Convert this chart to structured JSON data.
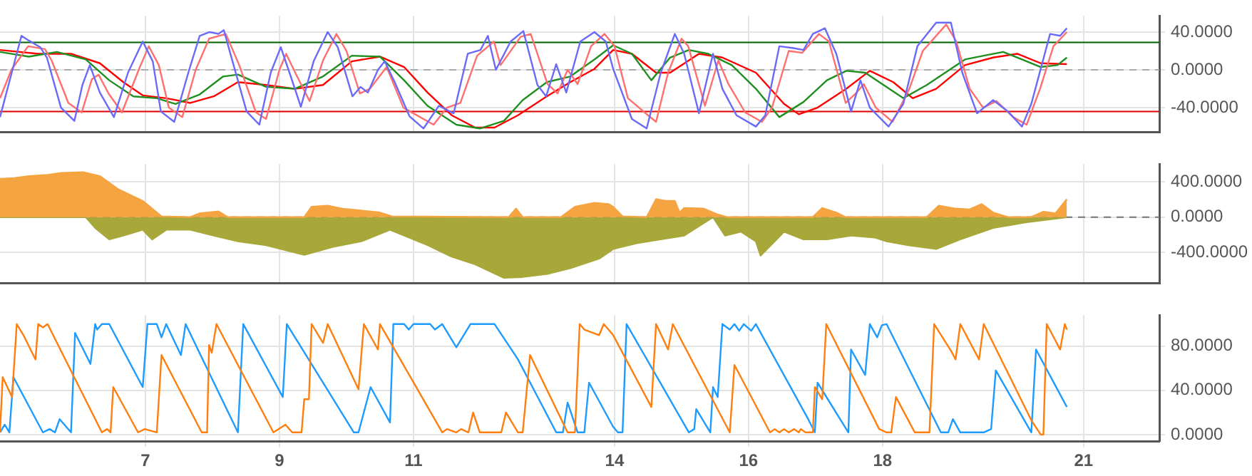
{
  "chart_data": [
    {
      "type": "line",
      "xlim": [
        4.83,
        22.13
      ],
      "xticks": [
        7,
        9,
        11,
        14,
        16,
        18,
        21
      ],
      "ylim": [
        -66,
        57
      ],
      "yticks": [
        {
          "value": 40,
          "label": "40.0000"
        },
        {
          "value": 0,
          "label": "0.0000"
        },
        {
          "value": -40,
          "label": "-40.0000"
        }
      ],
      "grid": true,
      "tick_labels": "y",
      "marker": "none",
      "ref_lines": [
        {
          "axis": "y",
          "value": 29,
          "color": "#006400"
        },
        {
          "axis": "y",
          "value": -44,
          "color": "#dd0000"
        },
        {
          "axis": "y",
          "value": 0,
          "color": "#aaaaaa",
          "line_style": "dashed"
        }
      ],
      "series": [
        {
          "color": "#6a6af8",
          "x": [
            4.83,
            5.15,
            5.26,
            5.43,
            5.53,
            5.74,
            5.94,
            6.06,
            6.17,
            6.32,
            6.53,
            6.74,
            6.96,
            7.11,
            7.23,
            7.43,
            7.64,
            7.81,
            7.96,
            8.09,
            8.17,
            8.3,
            8.51,
            8.7,
            8.87,
            9.02,
            9.15,
            9.32,
            9.51,
            9.72,
            9.87,
            10.09,
            10.21,
            10.32,
            10.47,
            10.57,
            10.72,
            10.94,
            11.15,
            11.38,
            11.6,
            11.81,
            12.0,
            12.11,
            12.23,
            12.45,
            12.64,
            12.85,
            12.98,
            13.13,
            13.28,
            13.49,
            13.7,
            13.87,
            13.98,
            14.26,
            14.48,
            14.69,
            14.9,
            15.04,
            15.26,
            15.47,
            15.61,
            15.82,
            16.11,
            16.25,
            16.46,
            16.67,
            16.82,
            16.96,
            17.14,
            17.31,
            17.53,
            17.67,
            17.81,
            18.09,
            18.31,
            18.52,
            18.8,
            19.02,
            19.19,
            19.41,
            19.65,
            19.87,
            20.08,
            20.22,
            20.5,
            20.65,
            20.75
          ],
          "values": [
            -50,
            36,
            31,
            24,
            13,
            -40,
            -54,
            -16,
            5,
            -24,
            -50,
            -3,
            30,
            9,
            -44,
            -55,
            -3,
            36,
            40,
            38,
            42,
            9,
            -44,
            -58,
            -3,
            24,
            -3,
            -39,
            9,
            40,
            24,
            -28,
            -18,
            -24,
            0,
            9,
            -13,
            -49,
            -62,
            -38,
            -46,
            17,
            21,
            36,
            0,
            30,
            41,
            -16,
            -28,
            6,
            -24,
            30,
            40,
            30,
            1,
            -52,
            -62,
            -3,
            38,
            17,
            -46,
            17,
            -20,
            -48,
            -60,
            -48,
            25,
            23,
            21,
            38,
            44,
            17,
            -44,
            -11,
            -40,
            -60,
            -36,
            25,
            50,
            50,
            -3,
            -46,
            -32,
            -44,
            -60,
            -36,
            38,
            36,
            44
          ]
        },
        {
          "color": "#ff6f6f",
          "x": [
            4.83,
            5.0,
            5.25,
            5.5,
            5.6,
            5.85,
            6.05,
            6.2,
            6.3,
            6.45,
            6.65,
            6.9,
            7.05,
            7.2,
            7.35,
            7.55,
            7.75,
            7.95,
            8.2,
            8.4,
            8.65,
            8.8,
            9.0,
            9.1,
            9.25,
            9.45,
            9.65,
            9.85,
            10.0,
            10.2,
            10.35,
            10.6,
            10.85,
            11.3,
            11.5,
            11.7,
            11.95,
            12.2,
            12.3,
            12.6,
            12.75,
            13.0,
            13.15,
            13.3,
            13.45,
            13.65,
            13.85,
            14.0,
            14.2,
            14.5,
            14.62,
            14.8,
            15.0,
            15.1,
            15.35,
            15.55,
            15.7,
            15.95,
            16.2,
            16.35,
            16.6,
            16.8,
            17.05,
            17.2,
            17.45,
            17.6,
            17.72,
            17.9,
            18.15,
            18.4,
            18.6,
            18.95,
            19.1,
            19.3,
            19.5,
            19.7,
            19.95,
            20.15,
            20.35,
            20.55,
            20.75
          ],
          "values": [
            -30,
            0,
            25,
            22,
            10,
            -35,
            -45,
            -10,
            -5,
            -25,
            -45,
            0,
            25,
            5,
            -40,
            -50,
            0,
            33,
            38,
            5,
            -45,
            -52,
            0,
            17,
            -5,
            -33,
            10,
            38,
            20,
            -25,
            -20,
            3,
            -40,
            -58,
            -40,
            -35,
            15,
            30,
            5,
            35,
            38,
            -15,
            -25,
            0,
            -15,
            25,
            38,
            25,
            -30,
            -48,
            -55,
            -3,
            33,
            25,
            -38,
            10,
            -15,
            -45,
            -55,
            -40,
            20,
            18,
            38,
            30,
            -35,
            -25,
            -15,
            -40,
            -55,
            -20,
            20,
            48,
            30,
            -20,
            -40,
            -33,
            -50,
            -58,
            -20,
            25,
            40
          ]
        },
        {
          "color": "#1f8f1f",
          "x": [
            4.83,
            5.26,
            5.68,
            6.11,
            6.46,
            6.82,
            7.17,
            7.45,
            7.81,
            8.16,
            8.38,
            8.8,
            9.23,
            9.65,
            10.08,
            10.5,
            10.86,
            11.21,
            11.64,
            11.99,
            12.35,
            12.63,
            12.99,
            13.34,
            13.7,
            13.98,
            14.26,
            14.55,
            14.83,
            15.11,
            15.4,
            15.75,
            16.11,
            16.46,
            16.82,
            17.17,
            17.46,
            17.74,
            18.31,
            18.66,
            19.23,
            19.51,
            19.8,
            20.08,
            20.36,
            20.61,
            20.75
          ],
          "values": [
            19,
            14,
            19,
            11,
            -11,
            -28,
            -30,
            -36,
            -26,
            -7,
            -5,
            -18,
            -20,
            -7,
            15,
            14,
            -11,
            -38,
            -58,
            -62,
            -54,
            -32,
            -13,
            -7,
            11,
            26,
            17,
            -11,
            13,
            21,
            17,
            5,
            -20,
            -50,
            -34,
            -11,
            -1,
            -3,
            -30,
            -16,
            11,
            15,
            19,
            11,
            3,
            5,
            13
          ]
        },
        {
          "color": "#ff0000",
          "x": [
            4.83,
            5.4,
            5.89,
            6.32,
            6.67,
            6.96,
            7.31,
            7.67,
            8.02,
            8.38,
            8.8,
            9.23,
            9.65,
            10.08,
            10.5,
            10.86,
            11.21,
            11.57,
            11.92,
            12.21,
            12.56,
            12.99,
            13.34,
            13.7,
            13.98,
            14.26,
            14.62,
            14.83,
            15.26,
            15.61,
            16.11,
            16.53,
            16.75,
            17.03,
            17.46,
            17.81,
            18.16,
            18.45,
            18.8,
            19.23,
            19.65,
            20.01,
            20.36,
            20.75
          ],
          "values": [
            21,
            17,
            17,
            7,
            -13,
            -27,
            -30,
            -35,
            -28,
            -13,
            -16,
            -20,
            -16,
            9,
            14,
            3,
            -24,
            -48,
            -61,
            -61,
            -48,
            -28,
            -13,
            1,
            21,
            17,
            -3,
            -3,
            17,
            13,
            -3,
            -36,
            -47,
            -40,
            -20,
            -1,
            -13,
            -30,
            -20,
            5,
            13,
            17,
            7,
            6
          ]
        }
      ]
    },
    {
      "type": "area",
      "xlim": [
        4.83,
        22.13
      ],
      "xticks": [
        7,
        9,
        11,
        14,
        16,
        18,
        21
      ],
      "ylim": [
        -750,
        600
      ],
      "yticks": [
        {
          "value": 400,
          "label": "400.0000"
        },
        {
          "value": 0,
          "label": "0.0000"
        },
        {
          "value": -400,
          "label": "-400.0000"
        }
      ],
      "grid": true,
      "tick_labels": "y",
      "marker": "none",
      "ref_lines": [
        {
          "axis": "y",
          "value": 0,
          "color": "#777777",
          "line_style": "dashed"
        }
      ],
      "series": [
        {
          "color": "#f5a442",
          "x": [
            4.83,
            5.04,
            5.26,
            5.54,
            5.75,
            6.07,
            6.32,
            6.6,
            6.96,
            7.24,
            7.67,
            7.81,
            8.09,
            8.23,
            9.37,
            9.48,
            9.72,
            9.94,
            10.22,
            10.5,
            10.68,
            12.42,
            12.53,
            12.63,
            13.2,
            13.41,
            13.7,
            13.91,
            13.98,
            14.12,
            14.48,
            14.62,
            14.76,
            14.9,
            14.97,
            15.04,
            15.33,
            15.54,
            15.68,
            16.96,
            17.1,
            17.31,
            17.45,
            18.66,
            18.84,
            19.09,
            19.3,
            19.48,
            19.65,
            19.87,
            20.22,
            20.4,
            20.58,
            20.75
          ],
          "values": [
            435,
            443,
            465,
            478,
            500,
            509,
            465,
            313,
            183,
            9,
            0,
            43,
            65,
            0,
            0,
            117,
            130,
            96,
            74,
            52,
            9,
            0,
            96,
            0,
            0,
            117,
            161,
            148,
            117,
            9,
            0,
            204,
            183,
            183,
            52,
            104,
            96,
            30,
            0,
            0,
            104,
            52,
            0,
            0,
            130,
            96,
            87,
            148,
            52,
            0,
            0,
            61,
            43,
            204
          ]
        },
        {
          "color": "#a8a83a",
          "x": [
            4.83,
            6.11,
            6.25,
            6.46,
            6.67,
            6.96,
            7.1,
            7.31,
            7.67,
            8.02,
            8.38,
            8.8,
            9.37,
            9.79,
            10.22,
            10.65,
            10.93,
            11.21,
            11.57,
            11.92,
            12.35,
            12.63,
            12.99,
            13.34,
            13.77,
            13.98,
            14.33,
            14.69,
            15.04,
            15.47,
            15.65,
            15.89,
            16.11,
            16.18,
            16.39,
            16.53,
            16.82,
            17.17,
            17.53,
            17.88,
            18.06,
            18.38,
            18.8,
            19.16,
            19.65,
            20.15,
            20.75
          ],
          "values": [
            0,
            0,
            -122,
            -252,
            -209,
            -143,
            -252,
            -143,
            -143,
            -209,
            -274,
            -317,
            -426,
            -339,
            -274,
            -143,
            -230,
            -317,
            -448,
            -535,
            -687,
            -678,
            -644,
            -578,
            -470,
            -361,
            -296,
            -252,
            -209,
            0,
            -209,
            -165,
            -274,
            -435,
            -274,
            -165,
            -252,
            -252,
            -209,
            -230,
            -274,
            -317,
            -361,
            -252,
            -122,
            -57,
            0
          ]
        }
      ]
    },
    {
      "type": "line",
      "xlim": [
        4.83,
        22.13
      ],
      "xticks": [
        7,
        9,
        11,
        14,
        16,
        18,
        21
      ],
      "ylim": [
        -6,
        108
      ],
      "yticks": [
        {
          "value": 80,
          "label": "80.0000"
        },
        {
          "value": 40,
          "label": "40.0000"
        },
        {
          "value": 0,
          "label": "0.0000"
        }
      ],
      "grid": true,
      "marker": "none",
      "series": [
        {
          "color": "#ff7f0e",
          "x": [
            4.83,
            4.87,
            5.01,
            5.08,
            5.18,
            5.36,
            5.4,
            5.47,
            5.54,
            6.35,
            6.43,
            6.48,
            6.52,
            6.89,
            6.99,
            7.17,
            7.24,
            7.84,
            7.92,
            7.95,
            7.99,
            8.06,
            8.91,
            9.09,
            9.19,
            9.33,
            9.37,
            9.44,
            9.48,
            9.65,
            9.72,
            10.18,
            10.26,
            10.47,
            10.5,
            11.43,
            11.5,
            11.64,
            11.71,
            11.82,
            11.89,
            11.99,
            12.31,
            12.38,
            12.56,
            12.63,
            12.74,
            13.3,
            13.41,
            13.48,
            13.55,
            13.77,
            13.84,
            13.98,
            14.55,
            14.62,
            14.8,
            14.87,
            15.72,
            15.79,
            16.32,
            16.39,
            16.46,
            16.53,
            16.6,
            16.68,
            16.75,
            16.78,
            16.85,
            16.96,
            16.99,
            17.1,
            17.16,
            17.95,
            18.06,
            18.13,
            18.2,
            18.48,
            18.7,
            18.77,
            19.02,
            19.09,
            19.16,
            19.44,
            19.51,
            20.22,
            20.36,
            20.4,
            20.45,
            20.65,
            20.72,
            20.75
          ],
          "values": [
            2,
            52,
            34,
            100,
            90,
            68,
            100,
            97,
            100,
            2,
            5,
            2,
            43,
            2,
            5,
            2,
            72,
            2,
            2,
            81,
            74,
            100,
            2,
            9,
            2,
            2,
            32,
            32,
            100,
            83,
            100,
            41,
            100,
            77,
            100,
            2,
            5,
            2,
            5,
            2,
            20,
            2,
            2,
            20,
            2,
            2,
            72,
            2,
            2,
            100,
            95,
            90,
            100,
            90,
            25,
            100,
            77,
            100,
            2,
            63,
            2,
            5,
            2,
            5,
            2,
            5,
            2,
            5,
            2,
            2,
            43,
            32,
            100,
            5,
            2,
            2,
            34,
            2,
            2,
            100,
            76,
            68,
            100,
            68,
            100,
            13,
            0,
            0,
            100,
            77,
            100,
            95
          ]
        },
        {
          "color": "#1e9bff",
          "x": [
            4.83,
            4.9,
            4.97,
            5.03,
            5.47,
            5.57,
            5.65,
            5.72,
            5.89,
            5.95,
            6.18,
            6.25,
            6.28,
            6.35,
            6.46,
            6.96,
            7.03,
            7.17,
            7.24,
            7.31,
            7.53,
            7.6,
            8.38,
            8.46,
            9.05,
            9.11,
            10.11,
            10.18,
            10.36,
            10.65,
            10.7,
            10.86,
            10.93,
            11.0,
            11.25,
            11.32,
            11.43,
            11.64,
            11.85,
            12.21,
            12.56,
            13.13,
            13.23,
            13.3,
            13.45,
            13.55,
            13.62,
            13.98,
            14.05,
            14.12,
            14.18,
            15.11,
            15.19,
            15.22,
            15.43,
            15.47,
            15.54,
            15.61,
            15.72,
            15.79,
            15.86,
            15.93,
            16.04,
            16.11,
            16.89,
            16.99,
            17.03,
            17.49,
            17.53,
            17.74,
            17.81,
            17.92,
            17.99,
            18.06,
            18.87,
            18.98,
            19.05,
            19.16,
            19.51,
            19.62,
            19.69,
            20.22,
            20.29,
            20.75
          ],
          "values": [
            2,
            9,
            2,
            52,
            2,
            5,
            2,
            14,
            2,
            92,
            64,
            100,
            95,
            100,
            100,
            43,
            100,
            100,
            88,
            100,
            72,
            100,
            2,
            100,
            34,
            100,
            2,
            2,
            43,
            11,
            100,
            100,
            95,
            100,
            100,
            95,
            100,
            79,
            100,
            100,
            68,
            2,
            2,
            29,
            2,
            2,
            47,
            7,
            2,
            2,
            100,
            2,
            5,
            23,
            2,
            43,
            34,
            100,
            95,
            100,
            94,
            100,
            94,
            100,
            14,
            2,
            47,
            2,
            77,
            54,
            100,
            88,
            99,
            100,
            2,
            2,
            14,
            2,
            2,
            5,
            58,
            2,
            77,
            25
          ]
        }
      ]
    }
  ]
}
